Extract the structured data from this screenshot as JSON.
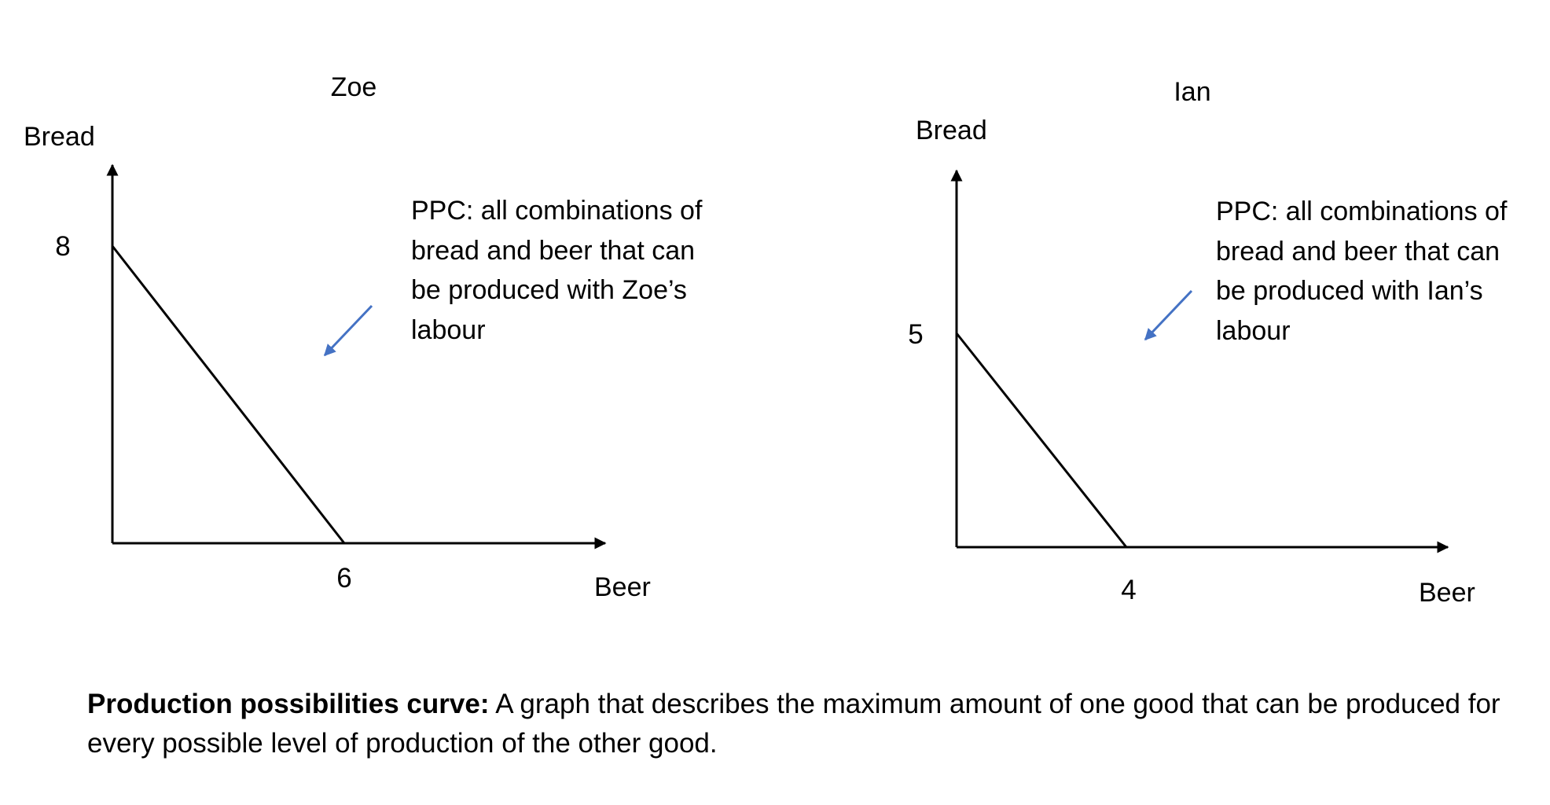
{
  "chart_data": [
    {
      "type": "line",
      "title": "Zoe",
      "xlabel": "Beer",
      "ylabel": "Bread",
      "x_ticks": [
        "6"
      ],
      "y_ticks": [
        "8"
      ],
      "points": [
        [
          0,
          8
        ],
        [
          6,
          0
        ]
      ],
      "annotation": {
        "lines": [
          "PPC: all combinations of",
          "bread and beer that can",
          "be produced with Zoe’s",
          "labour"
        ],
        "arrow_color": "#4472C4"
      },
      "line_color": "#000000"
    },
    {
      "type": "line",
      "title": "Ian",
      "xlabel": "Beer",
      "ylabel": "Bread",
      "x_ticks": [
        "4"
      ],
      "y_ticks": [
        "5"
      ],
      "points": [
        [
          0,
          5
        ],
        [
          4,
          0
        ]
      ],
      "annotation": {
        "lines": [
          "PPC: all combinations of",
          "bread and beer that can",
          "be produced with Ian’s",
          "labour"
        ],
        "arrow_color": "#4472C4"
      },
      "line_color": "#000000"
    }
  ],
  "definition": {
    "term": "Production possibilities curve:",
    "text": " A graph that describes the maximum amount of one good that can be produced for every possible level of production of the other good."
  }
}
